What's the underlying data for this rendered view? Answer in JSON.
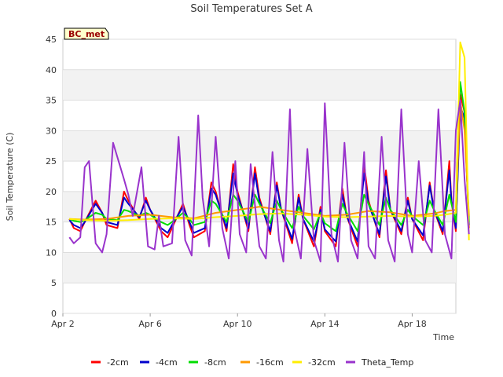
{
  "chart_data": {
    "type": "line",
    "title": "Soil Temperatures Set A",
    "xlabel": "Time",
    "ylabel": "Soil Temperature (C)",
    "site_badge": "BC_met",
    "xlim": [
      0,
      18
    ],
    "ylim": [
      0,
      45
    ],
    "y_ticks": [
      0,
      5,
      10,
      15,
      20,
      25,
      30,
      35,
      40,
      45
    ],
    "x_ticks": [
      {
        "value": 0,
        "label": "Apr 2"
      },
      {
        "value": 4,
        "label": "Apr 6"
      },
      {
        "value": 8,
        "label": "Apr 10"
      },
      {
        "value": 12,
        "label": "Apr 14"
      },
      {
        "value": 16,
        "label": "Apr 18"
      }
    ],
    "grid": "horizontal bands",
    "legend_position": "bottom",
    "series": [
      {
        "name": "-2cm",
        "color": "#ff0000",
        "x": [
          0.3,
          0.5,
          0.8,
          1.0,
          1.5,
          1.8,
          2.0,
          2.5,
          2.8,
          3.0,
          3.5,
          3.8,
          4.0,
          4.5,
          4.8,
          5.0,
          5.5,
          5.8,
          6.0,
          6.5,
          6.8,
          7.0,
          7.5,
          7.8,
          8.0,
          8.5,
          8.8,
          9.0,
          9.5,
          9.8,
          10.0,
          10.5,
          10.8,
          11.0,
          11.5,
          11.8,
          12.0,
          12.5,
          12.8,
          13.0,
          13.5,
          13.8,
          14.0,
          14.5,
          14.8,
          15.0,
          15.5,
          15.8,
          16.0,
          16.5,
          16.8,
          17.0,
          17.4,
          17.7,
          17.8,
          18.0,
          18.2,
          18.4,
          18.6
        ],
        "y": [
          15.5,
          14.0,
          13.5,
          15.0,
          18.5,
          16.5,
          14.5,
          14.0,
          20.0,
          18.5,
          15.5,
          19.0,
          17.0,
          13.5,
          12.5,
          14.0,
          18.0,
          14.5,
          12.5,
          13.5,
          21.5,
          20.0,
          13.5,
          24.5,
          20.0,
          13.5,
          24.0,
          19.0,
          13.0,
          21.5,
          17.0,
          11.5,
          19.5,
          15.5,
          11.0,
          17.5,
          13.5,
          11.0,
          20.5,
          16.0,
          11.0,
          24.5,
          18.5,
          12.5,
          23.5,
          17.0,
          13.0,
          19.0,
          15.5,
          12.0,
          21.5,
          17.0,
          13.0,
          25.0,
          18.5,
          13.5,
          36.0,
          33.0,
          14.0
        ]
      },
      {
        "name": "-4cm",
        "color": "#0000cc",
        "x": [
          0.3,
          0.5,
          0.8,
          1.0,
          1.5,
          1.8,
          2.0,
          2.5,
          2.8,
          3.0,
          3.5,
          3.8,
          4.0,
          4.5,
          4.8,
          5.0,
          5.5,
          5.8,
          6.0,
          6.5,
          6.8,
          7.0,
          7.5,
          7.8,
          8.0,
          8.5,
          8.8,
          9.0,
          9.5,
          9.8,
          10.0,
          10.5,
          10.8,
          11.0,
          11.5,
          11.8,
          12.0,
          12.5,
          12.8,
          13.0,
          13.5,
          13.8,
          14.0,
          14.5,
          14.8,
          15.0,
          15.5,
          15.8,
          16.0,
          16.5,
          16.8,
          17.0,
          17.4,
          17.7,
          17.8,
          18.0,
          18.2,
          18.4,
          18.6
        ],
        "y": [
          15.3,
          14.5,
          14.0,
          15.0,
          18.0,
          16.5,
          15.0,
          14.5,
          19.0,
          18.0,
          15.8,
          18.5,
          17.0,
          14.0,
          13.2,
          14.5,
          17.5,
          15.0,
          13.2,
          14.0,
          20.5,
          19.5,
          14.0,
          23.0,
          19.5,
          14.0,
          23.0,
          18.5,
          13.5,
          21.0,
          17.0,
          12.2,
          19.0,
          15.5,
          11.8,
          17.0,
          13.8,
          11.8,
          19.5,
          16.0,
          11.8,
          23.0,
          18.0,
          13.0,
          22.5,
          17.0,
          13.5,
          18.5,
          15.5,
          12.8,
          21.0,
          17.0,
          13.5,
          23.5,
          18.5,
          14.0,
          34.0,
          32.0,
          14.5
        ]
      },
      {
        "name": "-8cm",
        "color": "#00dd00",
        "x": [
          0.3,
          0.5,
          0.8,
          1.0,
          1.5,
          1.8,
          2.0,
          2.5,
          2.8,
          3.0,
          3.5,
          3.8,
          4.0,
          4.5,
          4.8,
          5.0,
          5.5,
          5.8,
          6.0,
          6.5,
          6.8,
          7.0,
          7.5,
          7.8,
          8.0,
          8.5,
          8.8,
          9.0,
          9.5,
          9.8,
          10.0,
          10.5,
          10.8,
          11.0,
          11.5,
          11.8,
          12.0,
          12.5,
          12.8,
          13.0,
          13.5,
          13.8,
          14.0,
          14.5,
          14.8,
          15.0,
          15.5,
          15.8,
          16.0,
          16.5,
          16.8,
          17.0,
          17.4,
          17.7,
          17.8,
          18.0,
          18.2,
          18.4,
          18.6
        ],
        "y": [
          15.5,
          15.2,
          15.0,
          15.3,
          16.5,
          16.2,
          15.5,
          15.3,
          17.0,
          16.8,
          16.0,
          16.5,
          16.2,
          15.0,
          14.5,
          15.0,
          16.5,
          15.5,
          14.5,
          15.0,
          18.5,
          18.0,
          15.0,
          19.5,
          18.5,
          15.0,
          19.5,
          18.0,
          14.8,
          18.5,
          17.0,
          14.0,
          17.5,
          16.0,
          13.8,
          16.5,
          14.8,
          13.5,
          18.0,
          16.5,
          13.5,
          19.5,
          18.0,
          14.5,
          19.0,
          17.0,
          14.5,
          17.0,
          16.0,
          14.5,
          18.5,
          17.0,
          14.5,
          19.5,
          18.0,
          15.0,
          38.0,
          33.0,
          15.0
        ]
      },
      {
        "name": "-16cm",
        "color": "#ff9900",
        "x": [
          0.3,
          1.0,
          2.0,
          3.0,
          4.0,
          5.0,
          6.0,
          7.0,
          8.0,
          9.0,
          10.0,
          11.0,
          12.0,
          13.0,
          14.0,
          15.0,
          16.0,
          17.0,
          17.5,
          18.0,
          18.2,
          18.4,
          18.6
        ],
        "y": [
          15.5,
          15.4,
          15.5,
          16.0,
          16.2,
          15.8,
          15.6,
          16.5,
          17.0,
          17.5,
          17.0,
          16.5,
          16.0,
          16.2,
          16.8,
          16.6,
          16.0,
          16.4,
          16.8,
          17.0,
          35.0,
          30.0,
          16.0
        ]
      },
      {
        "name": "-32cm",
        "color": "#ffee00",
        "x": [
          0.3,
          1.0,
          2.0,
          3.0,
          4.0,
          5.0,
          6.0,
          7.0,
          8.0,
          9.0,
          10.0,
          11.0,
          12.0,
          13.0,
          14.0,
          15.0,
          16.0,
          17.0,
          17.5,
          18.0,
          18.2,
          18.4,
          18.6
        ],
        "y": [
          15.5,
          15.3,
          15.2,
          15.3,
          15.5,
          15.6,
          15.5,
          15.8,
          16.0,
          16.3,
          16.4,
          16.2,
          15.9,
          15.8,
          15.9,
          16.0,
          15.9,
          16.0,
          16.2,
          16.5,
          44.5,
          42.0,
          12.0
        ]
      },
      {
        "name": "Theta_Temp",
        "color": "#9933cc",
        "x": [
          0.3,
          0.5,
          0.8,
          1.0,
          1.2,
          1.5,
          1.8,
          2.0,
          2.3,
          2.8,
          3.0,
          3.2,
          3.6,
          3.9,
          4.2,
          4.4,
          4.6,
          5.0,
          5.3,
          5.6,
          5.9,
          6.2,
          6.4,
          6.7,
          7.0,
          7.3,
          7.6,
          7.9,
          8.1,
          8.4,
          8.6,
          9.0,
          9.3,
          9.6,
          9.9,
          10.1,
          10.4,
          10.6,
          10.9,
          11.2,
          11.5,
          11.8,
          12.0,
          12.3,
          12.6,
          12.9,
          13.2,
          13.5,
          13.8,
          14.0,
          14.3,
          14.6,
          14.9,
          15.2,
          15.5,
          15.8,
          16.0,
          16.3,
          16.6,
          16.9,
          17.2,
          17.5,
          17.8,
          18.0,
          18.2,
          18.4,
          18.6
        ],
        "y": [
          12.5,
          11.5,
          12.5,
          24.0,
          25.0,
          11.5,
          10.0,
          13.0,
          28.0,
          22.0,
          19.5,
          16.0,
          24.0,
          11.0,
          10.5,
          16.0,
          11.0,
          11.5,
          29.0,
          12.0,
          9.5,
          32.5,
          19.0,
          11.0,
          29.0,
          14.0,
          9.0,
          25.0,
          13.0,
          10.0,
          24.5,
          11.0,
          9.0,
          26.5,
          12.0,
          8.5,
          33.5,
          14.0,
          9.0,
          27.0,
          12.0,
          8.5,
          34.5,
          13.0,
          8.5,
          28.0,
          12.0,
          9.0,
          26.5,
          11.0,
          9.0,
          29.0,
          12.0,
          8.5,
          33.5,
          13.0,
          10.0,
          25.0,
          12.0,
          10.0,
          33.5,
          13.0,
          9.0,
          30.0,
          35.0,
          22.0,
          13.0
        ]
      }
    ]
  }
}
